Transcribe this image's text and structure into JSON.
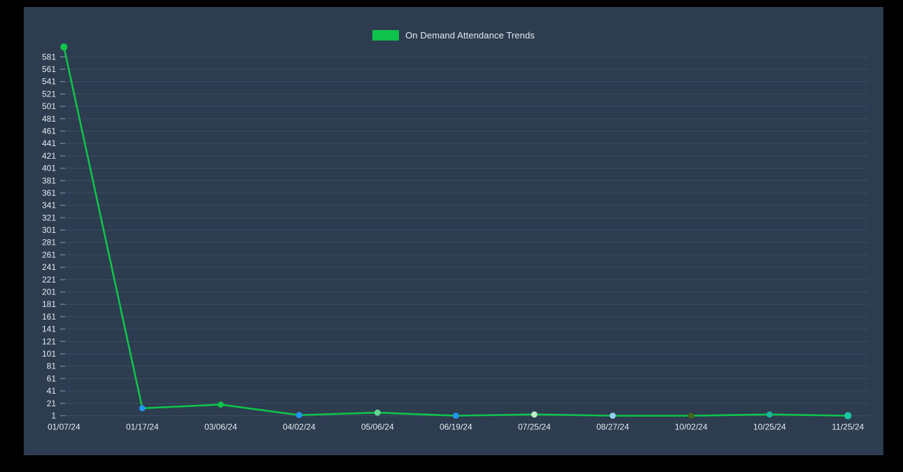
{
  "window": {
    "background": "#000000",
    "panel_background": "#2d3c4f"
  },
  "legend": {
    "label": "On Demand Attendance Trends",
    "swatch_color": "#0fc24b"
  },
  "chart_data": {
    "type": "line",
    "title": "On Demand Attendance Trends",
    "categories": [
      "01/07/24",
      "01/17/24",
      "03/06/24",
      "04/02/24",
      "05/06/24",
      "06/19/24",
      "07/25/24",
      "08/27/24",
      "10/02/24",
      "10/25/24",
      "11/25/24"
    ],
    "series": [
      {
        "name": "On Demand Attendance Trends",
        "values": [
          597,
          13,
          19,
          2,
          6,
          1,
          3,
          1,
          1,
          3,
          1
        ],
        "line_color": "#0fc24b",
        "point_colors": [
          "#0fc24b",
          "#2196f3",
          "#0fc24b",
          "#2196f3",
          "#63d695",
          "#2196f3",
          "#bdeec8",
          "#94cdf4",
          "#44661e",
          "#16b897",
          "#17c6a3"
        ]
      }
    ],
    "xlabel": "",
    "ylabel": "",
    "y_ticks": [
      1,
      21,
      41,
      61,
      81,
      101,
      121,
      141,
      161,
      181,
      201,
      221,
      241,
      261,
      281,
      301,
      321,
      341,
      361,
      381,
      401,
      421,
      441,
      461,
      481,
      501,
      521,
      541,
      561,
      581
    ],
    "ylim": [
      1,
      597
    ],
    "grid": true,
    "legend_position": "top-center",
    "axis_text_color": "#e2e9f0",
    "grid_color": "rgba(120,140,165,0.22)",
    "tick_mark_color": "rgba(160,175,195,0.55)"
  }
}
